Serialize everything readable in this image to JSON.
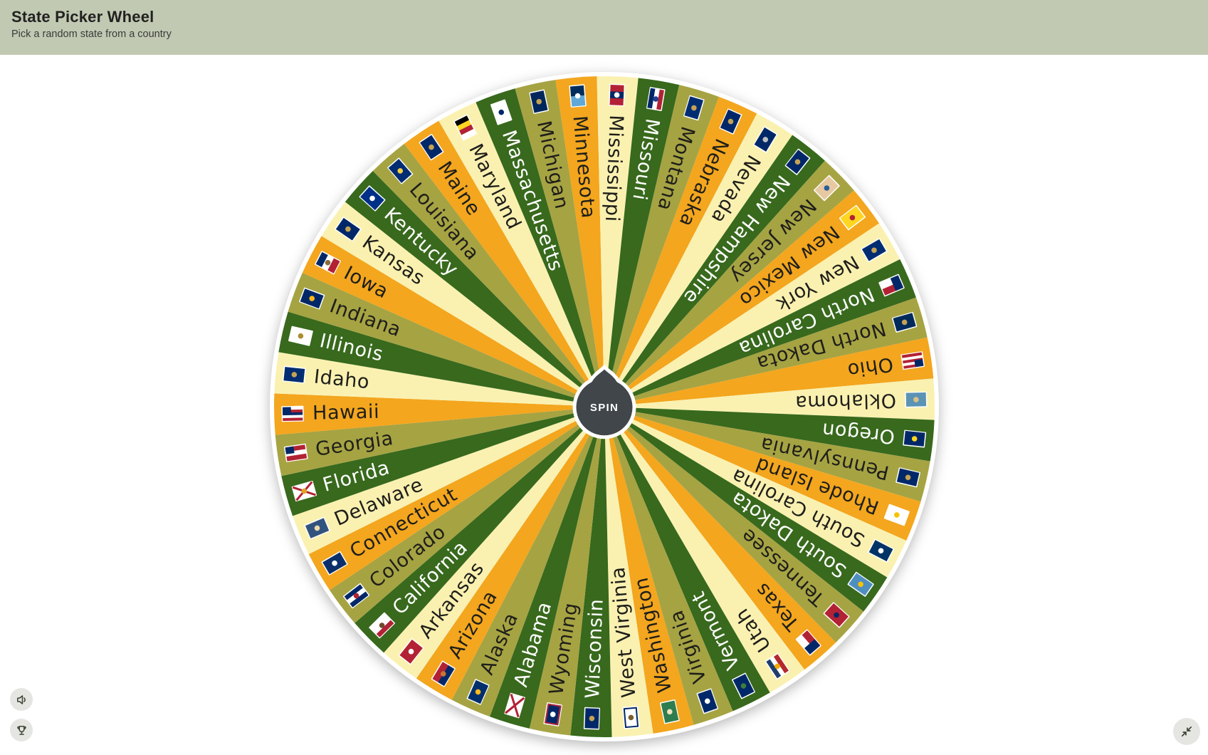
{
  "page": {
    "bg_color": "#ffffff"
  },
  "header": {
    "title": "State Picker Wheel",
    "subtitle": "Pick a random state from a country",
    "bg_color": "#c1c9b2"
  },
  "wheel": {
    "spin_label": "SPIN",
    "segment_angle_deg": 7.2,
    "top_state": "Mississippi",
    "top_offset_deg": 2.3,
    "palette": [
      "#38691d",
      "#a6a343",
      "#f3a61e",
      "#faf1b1"
    ],
    "hub_color": "#40464a",
    "hub_ring_color": "#ffffff",
    "rim_color": "#ffffff",
    "label_color": "#1e1e1a",
    "label_color_on_dark": "#ffffff",
    "states": [
      {
        "name": "Alabama",
        "flag": {
          "stripes": [
            "#ffffff"
          ],
          "saltire": "#b22234"
        }
      },
      {
        "name": "Alaska",
        "flag": {
          "stripes": [
            "#002f6c"
          ],
          "emblem": "#ffb81c"
        }
      },
      {
        "name": "Arizona",
        "flag": {
          "stripes": [
            "#b22234",
            "#002868"
          ],
          "emblem": "#c87533"
        }
      },
      {
        "name": "Arkansas",
        "flag": {
          "stripes": [
            "#b22234"
          ],
          "emblem": "#ffffff"
        }
      },
      {
        "name": "California",
        "flag": {
          "stripes": [
            "#ffffff",
            "#ffffff",
            "#b22234"
          ],
          "emblem": "#6b4a2b"
        }
      },
      {
        "name": "Colorado",
        "flag": {
          "stripes": [
            "#002868",
            "#ffffff",
            "#002868"
          ],
          "emblem": "#b22234"
        }
      },
      {
        "name": "Connecticut",
        "flag": {
          "stripes": [
            "#0b2f6b"
          ],
          "emblem": "#ffffff"
        }
      },
      {
        "name": "Delaware",
        "flag": {
          "stripes": [
            "#33537f"
          ],
          "emblem": "#eadcab"
        }
      },
      {
        "name": "Florida",
        "flag": {
          "stripes": [
            "#ffffff"
          ],
          "saltire": "#b22234",
          "emblem": "#dfa526"
        }
      },
      {
        "name": "Georgia",
        "flag": {
          "stripes": [
            "#b22234",
            "#ffffff",
            "#b22234"
          ],
          "canton": "#002868",
          "canton_h": 0.5
        }
      },
      {
        "name": "Hawaii",
        "flag": {
          "stripes": [
            "#ffffff",
            "#b22234",
            "#002868",
            "#ffffff",
            "#b22234"
          ],
          "canton": "#002868",
          "canton_h": 0.5
        }
      },
      {
        "name": "Idaho",
        "flag": {
          "stripes": [
            "#002d72"
          ],
          "emblem": "#c5a253"
        }
      },
      {
        "name": "Illinois",
        "flag": {
          "stripes": [
            "#ffffff"
          ],
          "emblem": "#ad8d33"
        }
      },
      {
        "name": "Indiana",
        "flag": {
          "stripes": [
            "#002868"
          ],
          "emblem": "#ffb81c"
        }
      },
      {
        "name": "Iowa",
        "flag": {
          "stripes": [
            "#002868",
            "#ffffff",
            "#b22234"
          ],
          "dir": "v",
          "emblem": "#8a6d3b"
        }
      },
      {
        "name": "Kansas",
        "flag": {
          "stripes": [
            "#002868"
          ],
          "emblem": "#c5a253"
        }
      },
      {
        "name": "Kentucky",
        "flag": {
          "stripes": [
            "#003087"
          ],
          "emblem": "#ffffff"
        }
      },
      {
        "name": "Louisiana",
        "flag": {
          "stripes": [
            "#002d72"
          ],
          "emblem": "#f3cf45"
        }
      },
      {
        "name": "Maine",
        "flag": {
          "stripes": [
            "#002868"
          ],
          "emblem": "#c5a253"
        }
      },
      {
        "name": "Maryland",
        "flag": {
          "stripes": [
            "#000000",
            "#ffd520",
            "#b22234",
            "#ffffff"
          ],
          "dir": "v"
        }
      },
      {
        "name": "Massachusetts",
        "flag": {
          "stripes": [
            "#ffffff"
          ],
          "emblem": "#002868"
        }
      },
      {
        "name": "Michigan",
        "flag": {
          "stripes": [
            "#00275d"
          ],
          "emblem": "#c5a253"
        }
      },
      {
        "name": "Minnesota",
        "flag": {
          "stripes": [
            "#002d5c",
            "#5fa8d8"
          ],
          "dir": "v",
          "emblem": "#ffffff"
        }
      },
      {
        "name": "Mississippi",
        "flag": {
          "stripes": [
            "#b22234",
            "#002868",
            "#b22234"
          ],
          "dir": "v",
          "emblem": "#ffffff"
        }
      },
      {
        "name": "Missouri",
        "flag": {
          "stripes": [
            "#b22234",
            "#ffffff",
            "#002868"
          ],
          "emblem": "#24408e"
        }
      },
      {
        "name": "Montana",
        "flag": {
          "stripes": [
            "#002d72"
          ],
          "emblem": "#c5a253"
        }
      },
      {
        "name": "Nebraska",
        "flag": {
          "stripes": [
            "#002868"
          ],
          "emblem": "#c5a253"
        }
      },
      {
        "name": "Nevada",
        "flag": {
          "stripes": [
            "#002868"
          ],
          "emblem": "#c0c0c0"
        }
      },
      {
        "name": "New Hampshire",
        "flag": {
          "stripes": [
            "#002868"
          ],
          "emblem": "#c5a253"
        }
      },
      {
        "name": "New Jersey",
        "flag": {
          "stripes": [
            "#e7c9a1"
          ],
          "emblem": "#2a5d9b"
        }
      },
      {
        "name": "New Mexico",
        "flag": {
          "stripes": [
            "#ffd520"
          ],
          "emblem": "#b22234"
        }
      },
      {
        "name": "New York",
        "flag": {
          "stripes": [
            "#002d72"
          ],
          "emblem": "#c5a253"
        }
      },
      {
        "name": "North Carolina",
        "flag": {
          "stripes": [
            "#b22234",
            "#ffffff"
          ],
          "canton": "#002868",
          "canton_h": 1
        }
      },
      {
        "name": "North Dakota",
        "flag": {
          "stripes": [
            "#002a5c"
          ],
          "emblem": "#c5a253"
        }
      },
      {
        "name": "Ohio",
        "flag": {
          "stripes": [
            "#b22234",
            "#ffffff",
            "#b22234",
            "#ffffff",
            "#b22234"
          ],
          "canton": "#002868",
          "canton_h": 0.5
        }
      },
      {
        "name": "Oklahoma",
        "flag": {
          "stripes": [
            "#5b93b5"
          ],
          "emblem": "#d9c089"
        }
      },
      {
        "name": "Oregon",
        "flag": {
          "stripes": [
            "#002868"
          ],
          "emblem": "#ffd520"
        }
      },
      {
        "name": "Pennsylvania",
        "flag": {
          "stripes": [
            "#002868"
          ],
          "emblem": "#c5a253"
        }
      },
      {
        "name": "Rhode Island",
        "flag": {
          "stripes": [
            "#ffffff"
          ],
          "emblem": "#f5c400"
        }
      },
      {
        "name": "South Carolina",
        "flag": {
          "stripes": [
            "#003366"
          ],
          "emblem": "#ffffff"
        }
      },
      {
        "name": "South Dakota",
        "flag": {
          "stripes": [
            "#4e8fc0"
          ],
          "emblem": "#f5c400"
        }
      },
      {
        "name": "Tennessee",
        "flag": {
          "stripes": [
            "#b22234"
          ],
          "emblem": "#002868"
        }
      },
      {
        "name": "Texas",
        "flag": {
          "stripes": [
            "#ffffff",
            "#b22234"
          ],
          "canton": "#002868",
          "canton_h": 1
        }
      },
      {
        "name": "Utah",
        "flag": {
          "stripes": [
            "#1e3f6e",
            "#ffffff",
            "#b3282d"
          ],
          "emblem": "#f4aa00"
        }
      },
      {
        "name": "Vermont",
        "flag": {
          "stripes": [
            "#002868"
          ],
          "emblem": "#3e7d3e"
        }
      },
      {
        "name": "Virginia",
        "flag": {
          "stripes": [
            "#002868"
          ],
          "emblem": "#ffffff"
        }
      },
      {
        "name": "Washington",
        "flag": {
          "stripes": [
            "#2e7d4f"
          ],
          "emblem": "#efe3c0"
        }
      },
      {
        "name": "West Virginia",
        "flag": {
          "stripes": [
            "#ffffff"
          ],
          "border": "#002868",
          "emblem": "#7a5f2e"
        }
      },
      {
        "name": "Wisconsin",
        "flag": {
          "stripes": [
            "#002868"
          ],
          "emblem": "#c5a253"
        }
      },
      {
        "name": "Wyoming",
        "flag": {
          "stripes": [
            "#002868"
          ],
          "border": "#b22234",
          "emblem": "#ffffff"
        }
      }
    ]
  },
  "controls": {
    "button_bg": "#e5e5e2",
    "icon_color": "#3a4430",
    "sound_button": {
      "icon": "speaker-icon"
    },
    "results_button": {
      "icon": "trophy-icon"
    },
    "fullscreen_button": {
      "icon": "collapse-arrows-icon"
    }
  }
}
